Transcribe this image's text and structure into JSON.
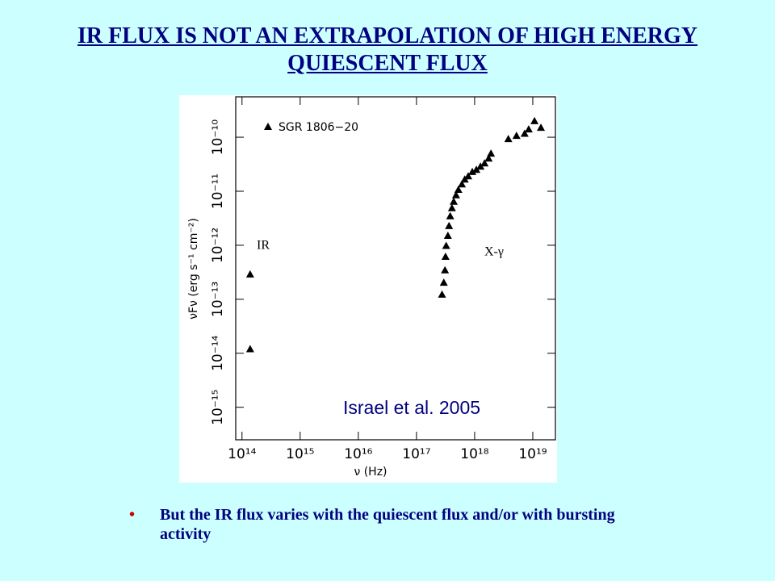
{
  "title": "IR FLUX IS NOT AN EXTRAPOLATION OF HIGH ENERGY QUIESCENT FLUX",
  "chart_data": {
    "type": "scatter",
    "x_label": "ν (Hz)",
    "y_label": "νFν (erg s⁻¹ cm⁻²)",
    "log_x": true,
    "log_y": true,
    "xlim": [
      78000000000000.0,
      2.45e+19
    ],
    "ylim": [
      2.5e-16,
      5.6e-10
    ],
    "xticks": [
      {
        "value": 100000000000000.0,
        "label": "10¹⁴"
      },
      {
        "value": 1000000000000000.0,
        "label": "10¹⁵"
      },
      {
        "value": 1e+16,
        "label": "10¹⁶"
      },
      {
        "value": 1e+17,
        "label": "10¹⁷"
      },
      {
        "value": 1e+18,
        "label": "10¹⁸"
      },
      {
        "value": 1e+19,
        "label": "10¹⁹"
      }
    ],
    "yticks": [
      {
        "value": 1e-15,
        "label": "10⁻¹⁵"
      },
      {
        "value": 1e-14,
        "label": "10⁻¹⁴"
      },
      {
        "value": 1e-13,
        "label": "10⁻¹³"
      },
      {
        "value": 1e-12,
        "label": "10⁻¹²"
      },
      {
        "value": 1e-11,
        "label": "10⁻¹¹"
      },
      {
        "value": 1e-10,
        "label": "10⁻¹⁰"
      }
    ],
    "series": [
      {
        "name": "SGR 1806−20",
        "color": "#000000",
        "x": [
          138000000000000.0,
          138000000000000.0,
          2.75e+17,
          2.95e+17,
          3.09e+17,
          3.16e+17,
          3.24e+17,
          3.47e+17,
          3.63e+17,
          3.8e+17,
          4.07e+17,
          4.37e+17,
          4.79e+17,
          5.25e+17,
          6.03e+17,
          6.76e+17,
          7.76e+17,
          9.12e+17,
          1.07e+18,
          1.26e+18,
          1.48e+18,
          1.74e+18,
          1.91e+18,
          3.8e+18,
          5.25e+18,
          7.24e+18,
          8.51e+18,
          1.07e+19,
          1.38e+19
        ],
        "values": [
          2.9e-13,
          1.2e-14,
          1.23e-13,
          2.04e-13,
          3.47e-13,
          6.17e-13,
          9.8e-13,
          1.51e-12,
          2.29e-12,
          3.47e-12,
          4.9e-12,
          6.46e-12,
          8.51e-12,
          1.07e-11,
          1.35e-11,
          1.66e-11,
          1.91e-11,
          2.29e-11,
          2.51e-11,
          2.88e-11,
          3.31e-11,
          4.07e-11,
          5.01e-11,
          9.3e-11,
          1.07e-10,
          1.17e-10,
          1.41e-10,
          2e-10,
          1.51e-10
        ]
      }
    ],
    "annotations": [
      "IR",
      "X-γ",
      "Israel et al. 2005"
    ]
  },
  "bullets": [
    "But the IR flux varies with the quiescent flux and/or with bursting activity"
  ]
}
